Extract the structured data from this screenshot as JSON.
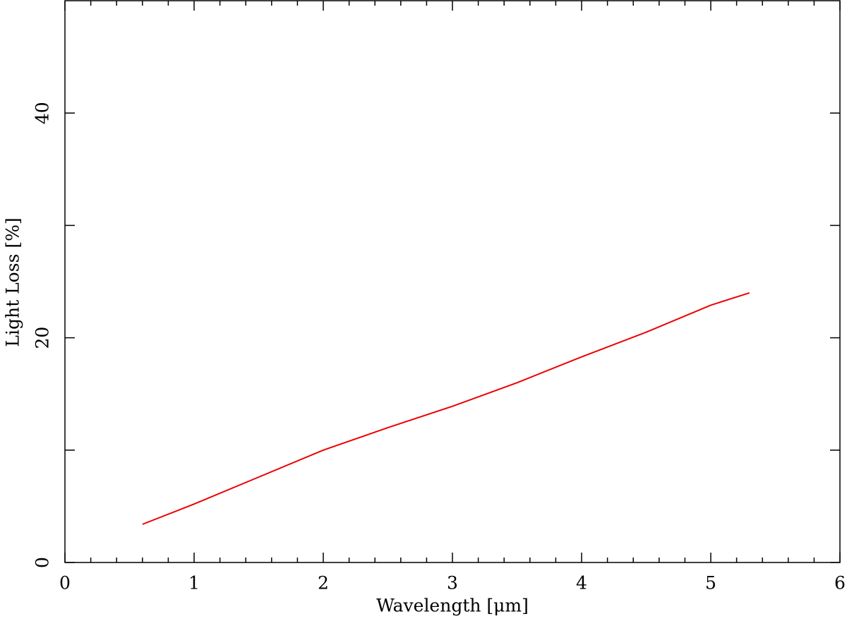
{
  "chart_data": {
    "type": "line",
    "x_label": "Wavelength [μm]",
    "y_label": "Light Loss [%]",
    "xlim": [
      0,
      6
    ],
    "ylim": [
      0,
      50
    ],
    "xticks": [
      0,
      1,
      2,
      3,
      4,
      5,
      6
    ],
    "yticks": [
      0,
      20,
      40
    ],
    "y_unlabeled_ticks": [
      10,
      30
    ],
    "x_minor_ticks": [
      0.2,
      0.4,
      0.6,
      0.8,
      1.2,
      1.4,
      1.6,
      1.8,
      2.2,
      2.4,
      2.6,
      2.8,
      3.2,
      3.4,
      3.6,
      3.8,
      4.2,
      4.4,
      4.6,
      4.8,
      5.2,
      5.4,
      5.6,
      5.8
    ],
    "series": [
      {
        "color": "#ee0000",
        "x": [
          0.6,
          1,
          1.5,
          2,
          2.5,
          3,
          3.5,
          4,
          4.5,
          5,
          5.3
        ],
        "values": [
          3.4,
          5.2,
          7.6,
          10.0,
          12.0,
          13.9,
          16.0,
          18.3,
          20.5,
          22.9,
          24.0
        ]
      }
    ]
  }
}
